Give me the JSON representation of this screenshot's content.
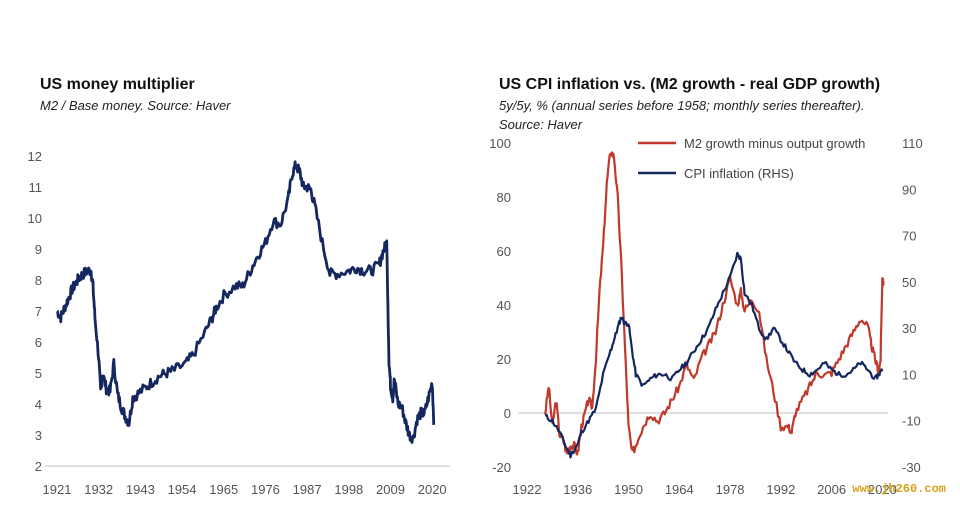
{
  "chart_data": [
    {
      "type": "line",
      "title": "US money multiplier",
      "subtitle": "M2 / Base money. Source: Haver",
      "xlabel": "",
      "ylabel": "",
      "xlim": [
        1921,
        2021
      ],
      "ylim": [
        2,
        12
      ],
      "x_ticks": [
        "1921",
        "1932",
        "1943",
        "1954",
        "1965",
        "1976",
        "1987",
        "1998",
        "2009",
        "2020"
      ],
      "y_ticks": [
        "2",
        "3",
        "4",
        "5",
        "6",
        "7",
        "8",
        "9",
        "10",
        "11",
        "12"
      ],
      "color": "#14275e",
      "series": [
        {
          "name": "US money multiplier",
          "x": [
            1921,
            1922,
            1923,
            1924,
            1925,
            1926,
            1927,
            1928,
            1929,
            1930,
            1930.5,
            1931,
            1932,
            1932.5,
            1933,
            1934,
            1935,
            1936,
            1937,
            1938,
            1939,
            1940,
            1941,
            1942,
            1944,
            1946,
            1948,
            1950,
            1952,
            1955,
            1957,
            1960,
            1962,
            1963,
            1965,
            1968,
            1970,
            1972,
            1974,
            1976,
            1978,
            1980,
            1982,
            1983,
            1984,
            1985,
            1986,
            1987,
            1988,
            1989,
            1991,
            1993,
            1995,
            1998,
            2000,
            2002,
            2004,
            2006,
            2007,
            2008,
            2008.6,
            2009,
            2009.6,
            2010,
            2011,
            2012,
            2013,
            2014,
            2015,
            2016,
            2017,
            2018,
            2019,
            2020,
            2020.4
          ],
          "values": [
            7.0,
            6.8,
            7.1,
            7.4,
            7.7,
            7.9,
            8.1,
            8.2,
            8.3,
            8.3,
            7.8,
            6.8,
            5.5,
            4.4,
            5.0,
            4.5,
            4.4,
            5.3,
            4.3,
            3.9,
            3.6,
            3.4,
            4.2,
            4.3,
            4.5,
            4.7,
            4.9,
            5.0,
            5.1,
            5.3,
            5.6,
            6.3,
            6.8,
            7.1,
            7.5,
            7.8,
            7.8,
            8.3,
            8.8,
            9.2,
            9.9,
            9.8,
            10.6,
            11.4,
            11.7,
            11.5,
            11.0,
            11.0,
            10.9,
            10.4,
            9.2,
            8.2,
            8.2,
            8.3,
            8.4,
            8.3,
            8.3,
            8.5,
            8.9,
            9.2,
            5.4,
            4.6,
            4.2,
            4.8,
            4.0,
            3.9,
            3.4,
            3.0,
            2.9,
            3.5,
            3.7,
            3.7,
            4.2,
            4.7,
            3.5
          ]
        }
      ]
    },
    {
      "type": "line",
      "title": "US CPI inflation vs. (M2 growth - real GDP growth)",
      "subtitle_lines": [
        "5y/5y, % (annual series before 1958; monthly series thereafter).",
        "Source: Haver"
      ],
      "xlim": [
        1922,
        2021
      ],
      "x_ticks": [
        "1922",
        "1936",
        "1950",
        "1964",
        "1978",
        "1992",
        "2006",
        "2020"
      ],
      "y_left": {
        "min": -20,
        "max": 100,
        "ticks": [
          "100",
          "80",
          "60",
          "40",
          "20",
          "0",
          "-20"
        ]
      },
      "y_right": {
        "min": -30,
        "max": 110,
        "ticks": [
          "110",
          "90",
          "70",
          "50",
          "30",
          "10",
          "-10",
          "-30"
        ]
      },
      "legend_position": "top-right",
      "series": [
        {
          "name": "M2 growth minus output growth",
          "axis": "left",
          "color": "#c0392b",
          "x": [
            1927,
            1928,
            1929,
            1930,
            1931,
            1932,
            1933,
            1934,
            1935,
            1936,
            1937,
            1938,
            1939,
            1940,
            1941,
            1942,
            1943,
            1944,
            1945,
            1946,
            1947,
            1948,
            1949,
            1950,
            1951,
            1952,
            1953,
            1954,
            1956,
            1958,
            1960,
            1962,
            1964,
            1966,
            1968,
            1970,
            1972,
            1974,
            1976,
            1978,
            1980,
            1981,
            1982,
            1984,
            1986,
            1988,
            1990,
            1992,
            1994,
            1995,
            1996,
            1998,
            2000,
            2002,
            2004,
            2006,
            2008,
            2010,
            2012,
            2014,
            2016,
            2017,
            2018,
            2019,
            2019.5,
            2020,
            2020.5
          ],
          "values": [
            0,
            10,
            -5,
            5,
            -8,
            -10,
            -15,
            -12,
            -12,
            -15,
            -5,
            0,
            5,
            2,
            20,
            45,
            62,
            85,
            97,
            95,
            80,
            55,
            25,
            -5,
            -15,
            -12,
            -8,
            -5,
            0,
            -3,
            0,
            5,
            10,
            18,
            12,
            20,
            25,
            30,
            40,
            50,
            40,
            45,
            38,
            42,
            38,
            20,
            8,
            -5,
            -5,
            -7,
            0,
            5,
            10,
            15,
            14,
            15,
            20,
            25,
            30,
            35,
            32,
            25,
            20,
            15,
            20,
            50,
            48
          ]
        },
        {
          "name": "CPI inflation (RHS)",
          "axis": "right",
          "color": "#14275e",
          "x": [
            1927,
            1929,
            1931,
            1933,
            1934,
            1936,
            1937,
            1939,
            1941,
            1943,
            1945,
            1946,
            1947,
            1948,
            1949,
            1950,
            1951,
            1952,
            1954,
            1956,
            1958,
            1960,
            1962,
            1964,
            1966,
            1968,
            1970,
            1972,
            1974,
            1976,
            1978,
            1980,
            1981,
            1982,
            1984,
            1986,
            1988,
            1990,
            1992,
            1994,
            1996,
            1998,
            2000,
            2002,
            2004,
            2006,
            2008,
            2010,
            2012,
            2014,
            2016,
            2018,
            2019,
            2020
          ],
          "values": [
            -8,
            -10,
            -15,
            -22,
            -25,
            -20,
            -15,
            -10,
            -5,
            10,
            20,
            25,
            30,
            35,
            32,
            32,
            20,
            10,
            5,
            8,
            10,
            10,
            8,
            12,
            15,
            20,
            25,
            30,
            38,
            45,
            52,
            62,
            60,
            45,
            40,
            30,
            25,
            30,
            25,
            20,
            15,
            12,
            10,
            12,
            15,
            12,
            10,
            10,
            12,
            15,
            12,
            8,
            10,
            12
          ]
        }
      ]
    }
  ],
  "legend": [
    {
      "label": "M2 growth minus output growth",
      "color": "#c0392b"
    },
    {
      "label": "CPI inflation (RHS)",
      "color": "#14275e"
    }
  ],
  "watermark": "www.jh260.com"
}
